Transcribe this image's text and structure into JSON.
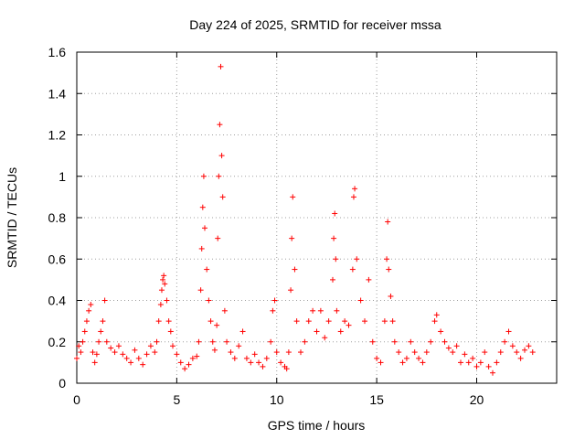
{
  "chart_data": {
    "type": "scatter",
    "title": "Day 224 of 2025, SRMTID for receiver mssa",
    "xlabel": "GPS time / hours",
    "ylabel": "SRMTID / TECUs",
    "xlim": [
      0,
      24
    ],
    "ylim": [
      0,
      1.6
    ],
    "xticks": [
      0,
      5,
      10,
      15,
      20
    ],
    "xtick_labels": [
      "0",
      "5",
      "10",
      "15",
      "20"
    ],
    "yticks": [
      0,
      0.2,
      0.4,
      0.6,
      0.8,
      1.0,
      1.2,
      1.4,
      1.6
    ],
    "ytick_labels": [
      "0",
      "0.2",
      "0.4",
      "0.6",
      "0.8",
      "1",
      "1.2",
      "1.4",
      "1.6"
    ],
    "grid": true,
    "marker": "plus",
    "marker_color": "#ff0000",
    "series": [
      {
        "name": "SRMTID",
        "points": [
          [
            0.0,
            0.12
          ],
          [
            0.1,
            0.18
          ],
          [
            0.2,
            0.15
          ],
          [
            0.3,
            0.2
          ],
          [
            0.4,
            0.25
          ],
          [
            0.5,
            0.3
          ],
          [
            0.6,
            0.35
          ],
          [
            0.7,
            0.38
          ],
          [
            0.8,
            0.15
          ],
          [
            0.9,
            0.1
          ],
          [
            1.0,
            0.14
          ],
          [
            1.1,
            0.2
          ],
          [
            1.2,
            0.25
          ],
          [
            1.3,
            0.3
          ],
          [
            1.4,
            0.4
          ],
          [
            1.5,
            0.2
          ],
          [
            1.7,
            0.17
          ],
          [
            1.9,
            0.15
          ],
          [
            2.1,
            0.18
          ],
          [
            2.3,
            0.14
          ],
          [
            2.5,
            0.12
          ],
          [
            2.7,
            0.1
          ],
          [
            2.9,
            0.16
          ],
          [
            3.1,
            0.12
          ],
          [
            3.3,
            0.09
          ],
          [
            3.5,
            0.14
          ],
          [
            3.7,
            0.18
          ],
          [
            3.9,
            0.15
          ],
          [
            4.0,
            0.2
          ],
          [
            4.1,
            0.3
          ],
          [
            4.2,
            0.38
          ],
          [
            4.25,
            0.45
          ],
          [
            4.3,
            0.5
          ],
          [
            4.35,
            0.52
          ],
          [
            4.4,
            0.48
          ],
          [
            4.5,
            0.4
          ],
          [
            4.6,
            0.3
          ],
          [
            4.7,
            0.25
          ],
          [
            4.8,
            0.18
          ],
          [
            5.0,
            0.14
          ],
          [
            5.2,
            0.1
          ],
          [
            5.4,
            0.07
          ],
          [
            5.6,
            0.09
          ],
          [
            5.8,
            0.12
          ],
          [
            6.0,
            0.13
          ],
          [
            6.1,
            0.2
          ],
          [
            6.2,
            0.45
          ],
          [
            6.25,
            0.65
          ],
          [
            6.3,
            0.85
          ],
          [
            6.35,
            1.0
          ],
          [
            6.4,
            0.75
          ],
          [
            6.5,
            0.55
          ],
          [
            6.6,
            0.4
          ],
          [
            6.7,
            0.3
          ],
          [
            6.8,
            0.2
          ],
          [
            6.9,
            0.16
          ],
          [
            7.0,
            0.28
          ],
          [
            7.05,
            0.7
          ],
          [
            7.1,
            1.0
          ],
          [
            7.15,
            1.25
          ],
          [
            7.2,
            1.53
          ],
          [
            7.25,
            1.1
          ],
          [
            7.3,
            0.9
          ],
          [
            7.4,
            0.35
          ],
          [
            7.5,
            0.2
          ],
          [
            7.7,
            0.15
          ],
          [
            7.9,
            0.12
          ],
          [
            8.1,
            0.18
          ],
          [
            8.3,
            0.25
          ],
          [
            8.5,
            0.12
          ],
          [
            8.7,
            0.1
          ],
          [
            8.9,
            0.14
          ],
          [
            9.1,
            0.1
          ],
          [
            9.3,
            0.08
          ],
          [
            9.5,
            0.12
          ],
          [
            9.7,
            0.2
          ],
          [
            9.8,
            0.35
          ],
          [
            9.9,
            0.4
          ],
          [
            10.0,
            0.15
          ],
          [
            10.2,
            0.1
          ],
          [
            10.4,
            0.08
          ],
          [
            10.5,
            0.07
          ],
          [
            10.6,
            0.15
          ],
          [
            10.7,
            0.45
          ],
          [
            10.75,
            0.7
          ],
          [
            10.8,
            0.9
          ],
          [
            10.9,
            0.55
          ],
          [
            11.0,
            0.3
          ],
          [
            11.2,
            0.15
          ],
          [
            11.4,
            0.2
          ],
          [
            11.6,
            0.3
          ],
          [
            11.8,
            0.35
          ],
          [
            12.0,
            0.25
          ],
          [
            12.2,
            0.35
          ],
          [
            12.4,
            0.22
          ],
          [
            12.6,
            0.3
          ],
          [
            12.8,
            0.5
          ],
          [
            12.85,
            0.7
          ],
          [
            12.9,
            0.82
          ],
          [
            12.95,
            0.6
          ],
          [
            13.0,
            0.35
          ],
          [
            13.2,
            0.25
          ],
          [
            13.4,
            0.3
          ],
          [
            13.6,
            0.28
          ],
          [
            13.8,
            0.55
          ],
          [
            13.85,
            0.9
          ],
          [
            13.9,
            0.94
          ],
          [
            14.0,
            0.6
          ],
          [
            14.2,
            0.4
          ],
          [
            14.4,
            0.3
          ],
          [
            14.6,
            0.5
          ],
          [
            14.8,
            0.2
          ],
          [
            15.0,
            0.12
          ],
          [
            15.2,
            0.1
          ],
          [
            15.4,
            0.3
          ],
          [
            15.5,
            0.6
          ],
          [
            15.55,
            0.78
          ],
          [
            15.6,
            0.55
          ],
          [
            15.7,
            0.42
          ],
          [
            15.8,
            0.3
          ],
          [
            15.9,
            0.2
          ],
          [
            16.1,
            0.15
          ],
          [
            16.3,
            0.1
          ],
          [
            16.5,
            0.12
          ],
          [
            16.7,
            0.2
          ],
          [
            16.9,
            0.15
          ],
          [
            17.1,
            0.12
          ],
          [
            17.3,
            0.1
          ],
          [
            17.5,
            0.15
          ],
          [
            17.7,
            0.2
          ],
          [
            17.9,
            0.3
          ],
          [
            18.0,
            0.33
          ],
          [
            18.2,
            0.25
          ],
          [
            18.4,
            0.2
          ],
          [
            18.6,
            0.17
          ],
          [
            18.8,
            0.15
          ],
          [
            19.0,
            0.18
          ],
          [
            19.2,
            0.1
          ],
          [
            19.4,
            0.14
          ],
          [
            19.6,
            0.1
          ],
          [
            19.8,
            0.12
          ],
          [
            20.0,
            0.08
          ],
          [
            20.2,
            0.1
          ],
          [
            20.4,
            0.15
          ],
          [
            20.6,
            0.08
          ],
          [
            20.8,
            0.05
          ],
          [
            21.0,
            0.1
          ],
          [
            21.2,
            0.15
          ],
          [
            21.4,
            0.2
          ],
          [
            21.6,
            0.25
          ],
          [
            21.8,
            0.18
          ],
          [
            22.0,
            0.15
          ],
          [
            22.2,
            0.12
          ],
          [
            22.4,
            0.16
          ],
          [
            22.6,
            0.18
          ],
          [
            22.8,
            0.15
          ]
        ]
      }
    ]
  }
}
